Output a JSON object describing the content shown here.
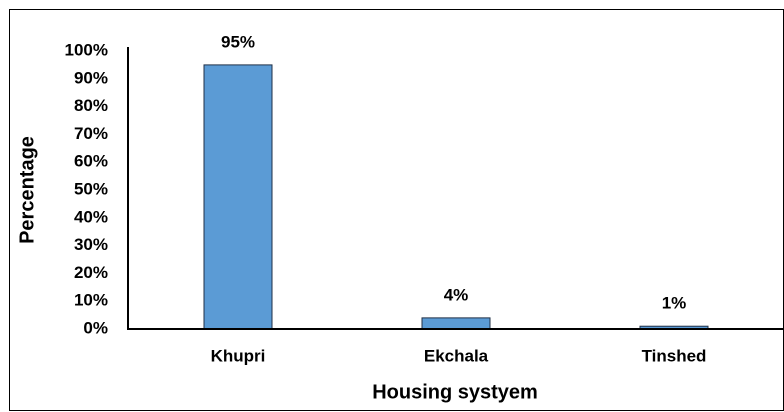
{
  "chart_data": {
    "type": "bar",
    "xlabel": "Housing systyem",
    "ylabel": "Percentage",
    "categories": [
      "Khupri",
      "Ekchala",
      "Tinshed"
    ],
    "values": [
      95,
      4,
      1
    ],
    "value_labels": [
      "95%",
      "4%",
      "1%"
    ],
    "color": "#5b9bd5",
    "ylim": [
      0,
      100
    ],
    "yticks": [
      {
        "value": 0,
        "label": "0%"
      },
      {
        "value": 10,
        "label": "10%"
      },
      {
        "value": 20,
        "label": "20%"
      },
      {
        "value": 30,
        "label": "30%"
      },
      {
        "value": 40,
        "label": "40%"
      },
      {
        "value": 50,
        "label": "50%"
      },
      {
        "value": 60,
        "label": "60%"
      },
      {
        "value": 70,
        "label": "70%"
      },
      {
        "value": 80,
        "label": "80%"
      },
      {
        "value": 90,
        "label": "90%"
      },
      {
        "value": 100,
        "label": "100%"
      }
    ],
    "grid": false
  }
}
